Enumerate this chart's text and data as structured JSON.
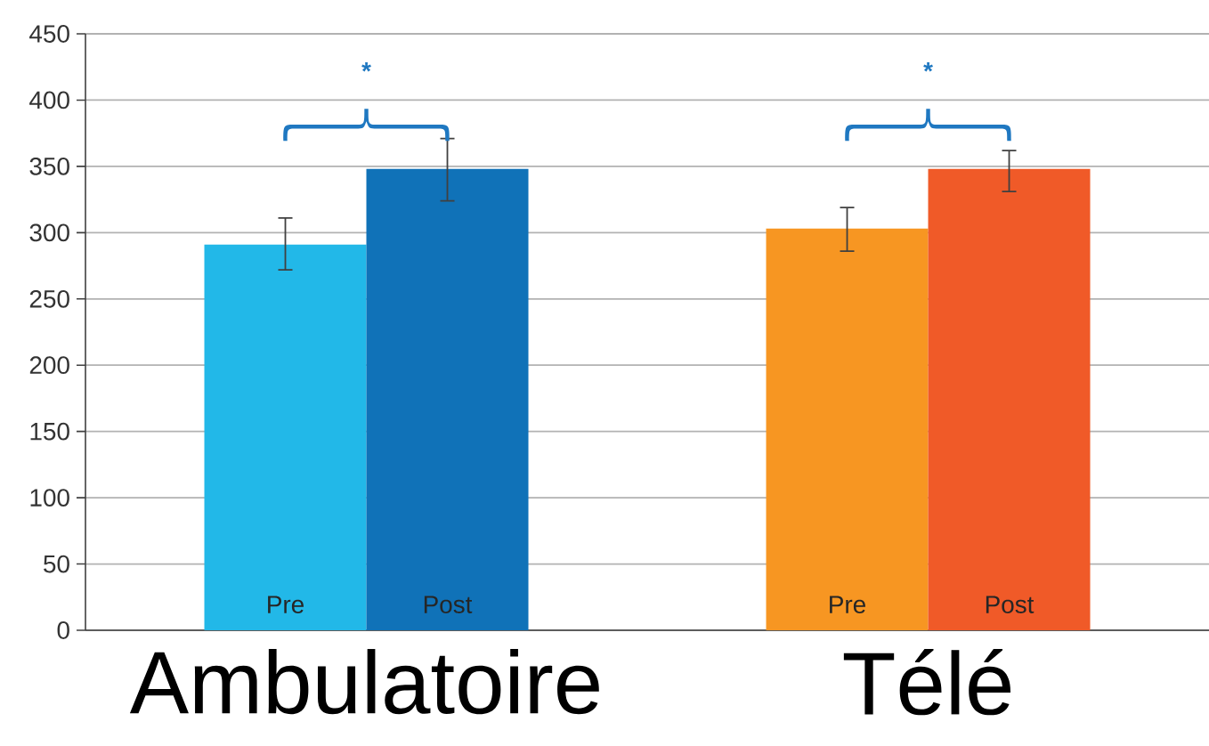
{
  "chart_data": {
    "type": "bar",
    "categories": [
      "Ambulatoire",
      "Télé"
    ],
    "series": [
      {
        "name": "Pre",
        "colors": [
          "#22b8e8",
          "#f79622"
        ],
        "values": [
          291,
          303
        ],
        "errors": [
          [
            272,
            311
          ],
          [
            286,
            319
          ]
        ]
      },
      {
        "name": "Post",
        "colors": [
          "#1072b8",
          "#f05a28"
        ],
        "values": [
          348,
          348
        ],
        "errors": [
          [
            324,
            371
          ],
          [
            331,
            362
          ]
        ]
      }
    ],
    "ylim": [
      0,
      450
    ],
    "yticks": [
      0,
      50,
      100,
      150,
      200,
      250,
      300,
      350,
      400,
      450
    ],
    "grid": "y",
    "annotations": [
      "*",
      "*"
    ]
  }
}
